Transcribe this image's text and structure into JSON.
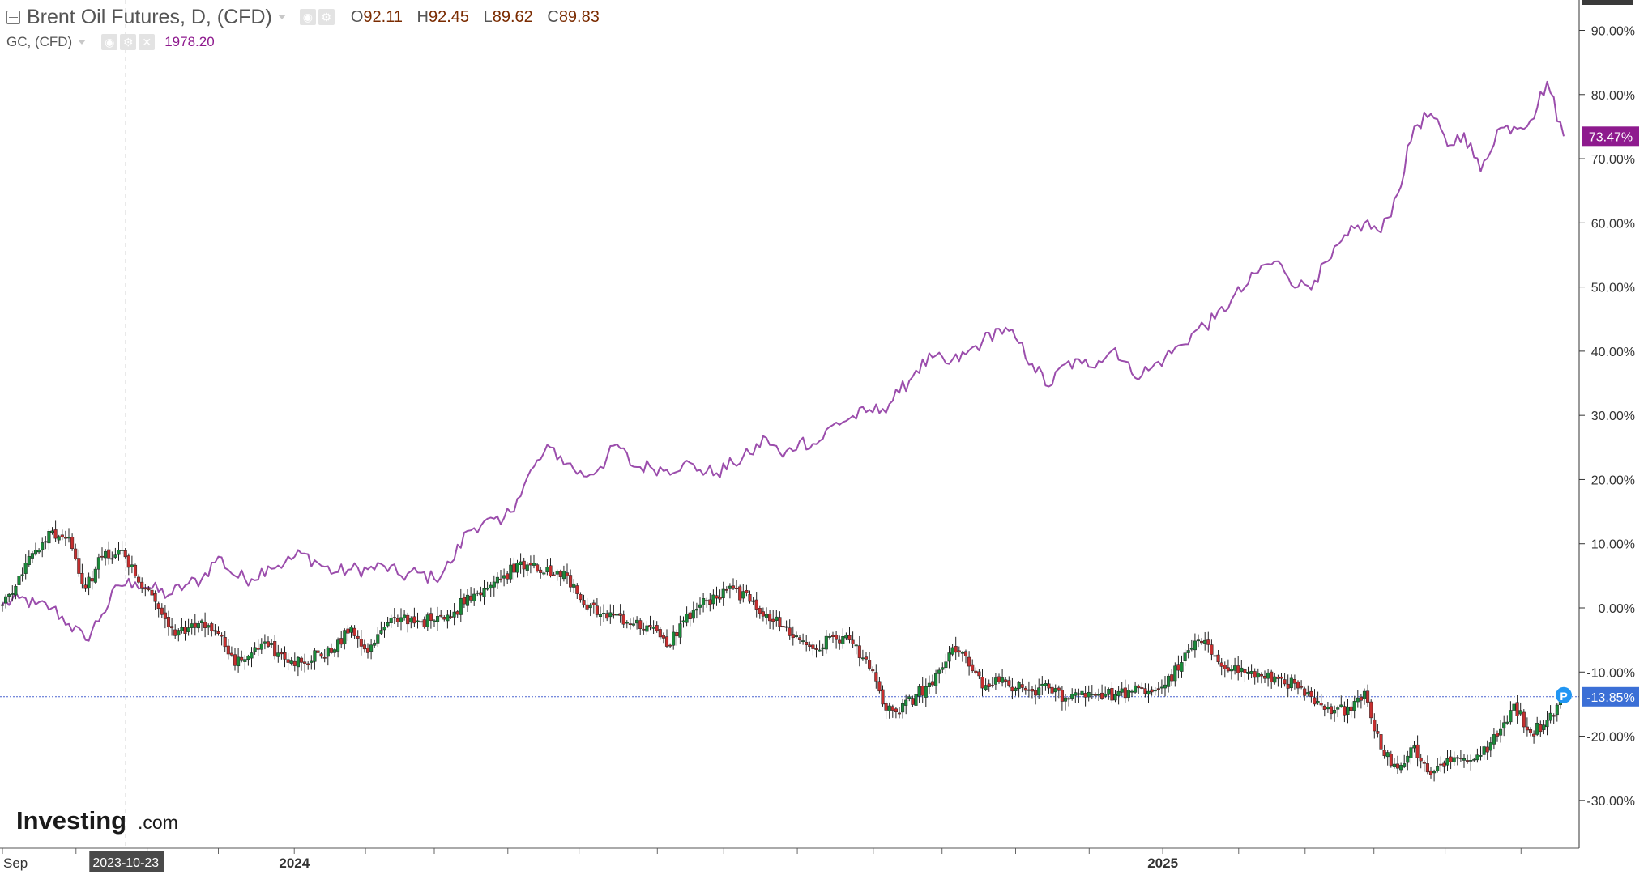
{
  "legend": {
    "main_title": "Brent Oil Futures, D, (CFD)",
    "open_label": "O",
    "open": "92.11",
    "high_label": "H",
    "high": "92.45",
    "low_label": "L",
    "low": "89.62",
    "close_label": "C",
    "close": "89.83",
    "compare_title": "GC, (CFD)",
    "compare_value": "1978.20"
  },
  "icons": {
    "collapse": "collapse-square-icon",
    "eye": "eye-icon",
    "settings": "gear-icon",
    "close": "close-icon",
    "price_marker": "p-badge-icon"
  },
  "watermark": {
    "brand": "Investing",
    "suffix": ".com"
  },
  "colors": {
    "gold_line": "#9b4dac",
    "up_candle": "#1a8a3a",
    "down_candle": "#c62f2f",
    "current_line": "#4a63d0",
    "gold_label_bg": "#8e1a8e",
    "brent_label_bg": "#3b6fd6",
    "marker_bg": "#2196f3",
    "crosshair_label_bg": "#4a4a4a"
  },
  "crosshair": {
    "date_label": "2023-10-23",
    "x_index": 30
  },
  "chart_data": {
    "type": "line",
    "start_date": "2023-09-01",
    "end_date": "2025-06-20",
    "ylabel": "",
    "ylim": [
      -38.0,
      95.0
    ],
    "y_ticks": [
      90,
      80,
      70,
      60,
      50,
      40,
      30,
      20,
      10,
      0,
      -10,
      -20,
      -30
    ],
    "y_tick_labels": [
      "90.00%",
      "80.00%",
      "70.00%",
      "60.00%",
      "50.00%",
      "40.00%",
      "30.00%",
      "20.00%",
      "10.00%",
      "0.00%",
      "-10.00%",
      "-20.00%",
      "-30.00%"
    ],
    "x_tick_labels": [
      {
        "date": "2023-09-01",
        "label": "Sep"
      },
      {
        "date": "2024-01-01",
        "label": "2024"
      },
      {
        "date": "2025-01-01",
        "label": "2025"
      }
    ],
    "x_grid_dates": [
      "2023-09-01",
      "2023-10-02",
      "2023-11-01",
      "2023-12-01",
      "2024-01-02",
      "2024-02-01",
      "2024-03-01",
      "2024-04-01",
      "2024-05-01",
      "2024-06-03",
      "2024-07-01",
      "2024-08-01",
      "2024-09-02",
      "2024-10-01",
      "2024-11-01",
      "2024-12-02",
      "2025-01-02",
      "2025-02-03",
      "2025-03-03",
      "2025-04-01",
      "2025-05-01",
      "2025-06-02"
    ],
    "grid": false,
    "series": [
      {
        "name": "GC, (CFD)",
        "style": "line",
        "last_label": "73.47%",
        "points": [
          [
            "2023-09-01",
            0.5
          ],
          [
            "2023-09-08",
            1.5
          ],
          [
            "2023-09-15",
            0.5
          ],
          [
            "2023-09-22",
            0.0
          ],
          [
            "2023-09-29",
            -2.5
          ],
          [
            "2023-10-06",
            -5.0
          ],
          [
            "2023-10-13",
            -1.0
          ],
          [
            "2023-10-20",
            3.5
          ],
          [
            "2023-10-27",
            4.0
          ],
          [
            "2023-11-03",
            3.0
          ],
          [
            "2023-11-10",
            2.0
          ],
          [
            "2023-11-17",
            3.5
          ],
          [
            "2023-11-24",
            4.5
          ],
          [
            "2023-12-01",
            8.0
          ],
          [
            "2023-12-08",
            5.0
          ],
          [
            "2023-12-15",
            4.5
          ],
          [
            "2023-12-22",
            6.5
          ],
          [
            "2023-12-29",
            7.0
          ],
          [
            "2024-01-05",
            8.5
          ],
          [
            "2024-01-12",
            7.0
          ],
          [
            "2024-01-19",
            5.5
          ],
          [
            "2024-01-26",
            6.0
          ],
          [
            "2024-02-02",
            6.0
          ],
          [
            "2024-02-09",
            6.5
          ],
          [
            "2024-02-16",
            5.0
          ],
          [
            "2024-02-23",
            5.5
          ],
          [
            "2024-03-01",
            4.5
          ],
          [
            "2024-03-08",
            7.0
          ],
          [
            "2024-03-15",
            12.0
          ],
          [
            "2024-03-22",
            13.5
          ],
          [
            "2024-03-29",
            13.0
          ],
          [
            "2024-04-05",
            17.0
          ],
          [
            "2024-04-12",
            22.0
          ],
          [
            "2024-04-19",
            25.0
          ],
          [
            "2024-04-26",
            22.5
          ],
          [
            "2024-05-03",
            20.5
          ],
          [
            "2024-05-10",
            22.0
          ],
          [
            "2024-05-17",
            25.5
          ],
          [
            "2024-05-24",
            22.0
          ],
          [
            "2024-05-31",
            22.0
          ],
          [
            "2024-06-07",
            21.5
          ],
          [
            "2024-06-14",
            22.5
          ],
          [
            "2024-06-21",
            21.5
          ],
          [
            "2024-06-28",
            21.0
          ],
          [
            "2024-07-05",
            22.5
          ],
          [
            "2024-07-12",
            24.0
          ],
          [
            "2024-07-19",
            26.5
          ],
          [
            "2024-07-26",
            23.5
          ],
          [
            "2024-08-02",
            26.0
          ],
          [
            "2024-08-09",
            25.5
          ],
          [
            "2024-08-16",
            28.5
          ],
          [
            "2024-08-23",
            29.5
          ],
          [
            "2024-08-30",
            30.5
          ],
          [
            "2024-09-06",
            31.0
          ],
          [
            "2024-09-13",
            33.5
          ],
          [
            "2024-09-20",
            37.0
          ],
          [
            "2024-09-27",
            39.0
          ],
          [
            "2024-10-04",
            38.0
          ],
          [
            "2024-10-11",
            39.5
          ],
          [
            "2024-10-18",
            41.5
          ],
          [
            "2024-10-25",
            43.5
          ],
          [
            "2024-11-01",
            42.0
          ],
          [
            "2024-11-08",
            38.0
          ],
          [
            "2024-11-15",
            34.5
          ],
          [
            "2024-11-22",
            38.0
          ],
          [
            "2024-11-29",
            38.0
          ],
          [
            "2024-12-06",
            38.5
          ],
          [
            "2024-12-13",
            40.5
          ],
          [
            "2024-12-20",
            36.5
          ],
          [
            "2024-12-27",
            37.0
          ],
          [
            "2025-01-03",
            39.0
          ],
          [
            "2025-01-10",
            41.0
          ],
          [
            "2025-01-17",
            43.5
          ],
          [
            "2025-01-24",
            45.0
          ],
          [
            "2025-01-31",
            48.0
          ],
          [
            "2025-02-07",
            50.5
          ],
          [
            "2025-02-14",
            53.5
          ],
          [
            "2025-02-21",
            53.5
          ],
          [
            "2025-02-28",
            50.0
          ],
          [
            "2025-03-07",
            51.0
          ],
          [
            "2025-03-14",
            54.5
          ],
          [
            "2025-03-21",
            58.0
          ],
          [
            "2025-03-28",
            60.0
          ],
          [
            "2025-04-04",
            58.5
          ],
          [
            "2025-04-11",
            64.5
          ],
          [
            "2025-04-18",
            75.0
          ],
          [
            "2025-04-25",
            77.0
          ],
          [
            "2025-05-02",
            72.0
          ],
          [
            "2025-05-09",
            74.0
          ],
          [
            "2025-05-16",
            68.0
          ],
          [
            "2025-05-23",
            74.5
          ],
          [
            "2025-05-30",
            75.0
          ],
          [
            "2025-06-06",
            76.0
          ],
          [
            "2025-06-13",
            82.0
          ],
          [
            "2025-06-20",
            73.5
          ]
        ]
      },
      {
        "name": "Brent Oil Futures",
        "style": "candles",
        "last_label": "-13.85%",
        "points": [
          [
            "2023-09-01",
            0.5
          ],
          [
            "2023-09-08",
            5.0
          ],
          [
            "2023-09-15",
            9.0
          ],
          [
            "2023-09-22",
            12.0
          ],
          [
            "2023-09-29",
            11.0
          ],
          [
            "2023-10-06",
            3.0
          ],
          [
            "2023-10-13",
            8.0
          ],
          [
            "2023-10-20",
            9.0
          ],
          [
            "2023-10-27",
            5.0
          ],
          [
            "2023-11-03",
            2.0
          ],
          [
            "2023-11-10",
            -3.0
          ],
          [
            "2023-11-17",
            -4.0
          ],
          [
            "2023-11-24",
            -2.0
          ],
          [
            "2023-12-01",
            -4.0
          ],
          [
            "2023-12-08",
            -9.0
          ],
          [
            "2023-12-15",
            -7.0
          ],
          [
            "2023-12-22",
            -6.0
          ],
          [
            "2023-12-29",
            -8.0
          ],
          [
            "2024-01-05",
            -8.5
          ],
          [
            "2024-01-12",
            -7.0
          ],
          [
            "2024-01-19",
            -6.5
          ],
          [
            "2024-01-26",
            -3.0
          ],
          [
            "2024-02-02",
            -7.0
          ],
          [
            "2024-02-09",
            -3.0
          ],
          [
            "2024-02-16",
            -1.5
          ],
          [
            "2024-02-23",
            -2.0
          ],
          [
            "2024-03-01",
            -2.0
          ],
          [
            "2024-03-08",
            -1.5
          ],
          [
            "2024-03-15",
            2.0
          ],
          [
            "2024-03-22",
            3.0
          ],
          [
            "2024-03-29",
            4.5
          ],
          [
            "2024-04-05",
            7.0
          ],
          [
            "2024-04-12",
            7.0
          ],
          [
            "2024-04-19",
            5.0
          ],
          [
            "2024-04-26",
            5.0
          ],
          [
            "2024-05-03",
            0.5
          ],
          [
            "2024-05-10",
            -1.0
          ],
          [
            "2024-05-17",
            -1.0
          ],
          [
            "2024-05-24",
            -2.5
          ],
          [
            "2024-05-31",
            -3.0
          ],
          [
            "2024-06-07",
            -6.0
          ],
          [
            "2024-06-14",
            -2.0
          ],
          [
            "2024-06-21",
            0.5
          ],
          [
            "2024-06-28",
            1.5
          ],
          [
            "2024-07-05",
            3.0
          ],
          [
            "2024-07-12",
            1.0
          ],
          [
            "2024-07-19",
            -1.0
          ],
          [
            "2024-07-26",
            -3.0
          ],
          [
            "2024-08-02",
            -5.0
          ],
          [
            "2024-08-09",
            -6.5
          ],
          [
            "2024-08-16",
            -4.5
          ],
          [
            "2024-08-23",
            -5.0
          ],
          [
            "2024-08-30",
            -8.0
          ],
          [
            "2024-09-06",
            -15.0
          ],
          [
            "2024-09-13",
            -16.5
          ],
          [
            "2024-09-20",
            -13.5
          ],
          [
            "2024-09-27",
            -12.0
          ],
          [
            "2024-10-04",
            -7.0
          ],
          [
            "2024-10-11",
            -7.5
          ],
          [
            "2024-10-18",
            -12.5
          ],
          [
            "2024-10-25",
            -11.5
          ],
          [
            "2024-11-01",
            -12.5
          ],
          [
            "2024-11-08",
            -13.0
          ],
          [
            "2024-11-15",
            -12.5
          ],
          [
            "2024-11-22",
            -14.0
          ],
          [
            "2024-11-29",
            -13.0
          ],
          [
            "2024-12-06",
            -13.5
          ],
          [
            "2024-12-13",
            -13.5
          ],
          [
            "2024-12-20",
            -13.0
          ],
          [
            "2024-12-27",
            -13.0
          ],
          [
            "2025-01-03",
            -12.0
          ],
          [
            "2025-01-10",
            -8.5
          ],
          [
            "2025-01-17",
            -5.0
          ],
          [
            "2025-01-24",
            -7.5
          ],
          [
            "2025-01-31",
            -9.5
          ],
          [
            "2025-02-07",
            -10.0
          ],
          [
            "2025-02-14",
            -11.0
          ],
          [
            "2025-02-21",
            -11.0
          ],
          [
            "2025-02-28",
            -12.5
          ],
          [
            "2025-03-07",
            -15.0
          ],
          [
            "2025-03-14",
            -16.5
          ],
          [
            "2025-03-21",
            -15.5
          ],
          [
            "2025-03-28",
            -13.0
          ],
          [
            "2025-04-04",
            -22.0
          ],
          [
            "2025-04-11",
            -25.0
          ],
          [
            "2025-04-18",
            -21.5
          ],
          [
            "2025-04-25",
            -26.0
          ],
          [
            "2025-05-02",
            -23.5
          ],
          [
            "2025-05-09",
            -23.5
          ],
          [
            "2025-05-16",
            -23.0
          ],
          [
            "2025-05-23",
            -20.0
          ],
          [
            "2025-05-30",
            -15.0
          ],
          [
            "2025-06-06",
            -19.5
          ],
          [
            "2025-06-13",
            -17.5
          ],
          [
            "2025-06-20",
            -13.85
          ]
        ]
      }
    ]
  }
}
